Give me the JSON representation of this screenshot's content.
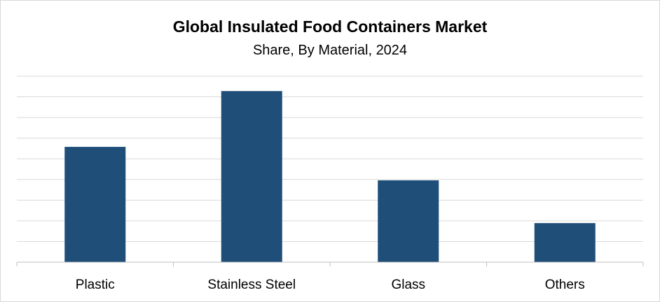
{
  "chart_data": {
    "type": "bar",
    "title": "Global Insulated Food Containers Market",
    "subtitle": "Share, By Material, 2024",
    "categories": [
      "Plastic",
      "Stainless Steel",
      "Glass",
      "Others"
    ],
    "values": [
      31,
      46,
      22,
      10.5
    ],
    "xlabel": "",
    "ylabel": "",
    "ylim": [
      0,
      50
    ],
    "grid": true,
    "legend": "none",
    "bar_color": "#1f4e79"
  }
}
